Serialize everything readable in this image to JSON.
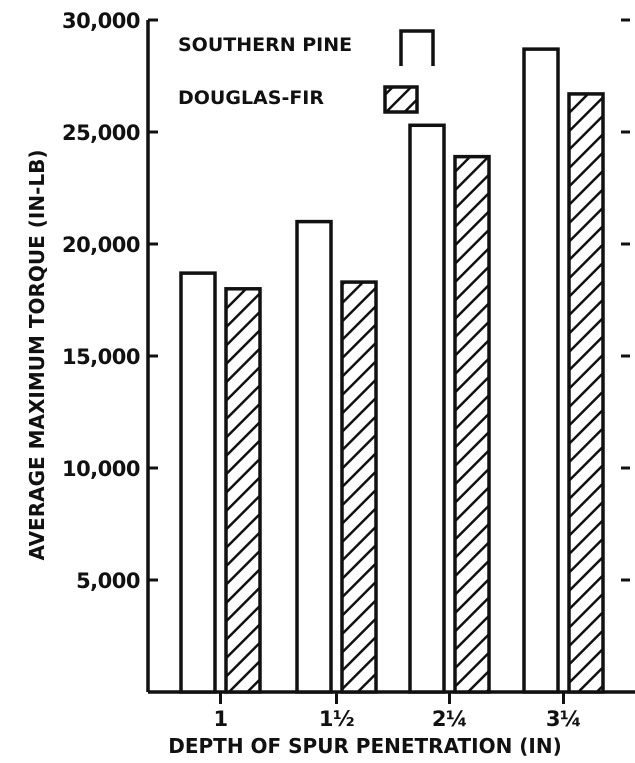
{
  "chart_data": {
    "type": "bar",
    "title": "",
    "xlabel": "DEPTH OF SPUR PENETRATION (IN)",
    "ylabel": "AVERAGE MAXIMUM TORQUE (IN-LB)",
    "categories": [
      "1",
      "1½",
      "2¼",
      "3¼"
    ],
    "series": [
      {
        "name": "SOUTHERN PINE",
        "values": [
          18700,
          21000,
          25300,
          28700
        ],
        "fill": "none"
      },
      {
        "name": "DOUGLAS-FIR",
        "values": [
          18000,
          18300,
          23900,
          26700
        ],
        "fill": "hatched"
      }
    ],
    "ylim": [
      0,
      30000
    ],
    "yticks": [
      5000,
      10000,
      15000,
      20000,
      25000,
      30000
    ],
    "ytick_labels": [
      "5,000",
      "10,000",
      "15,000",
      "20,000",
      "25,000",
      "30,000"
    ],
    "legend_position": "top-left",
    "grid": false,
    "colors": {
      "ink": "#111111",
      "background": "#ffffff"
    }
  }
}
